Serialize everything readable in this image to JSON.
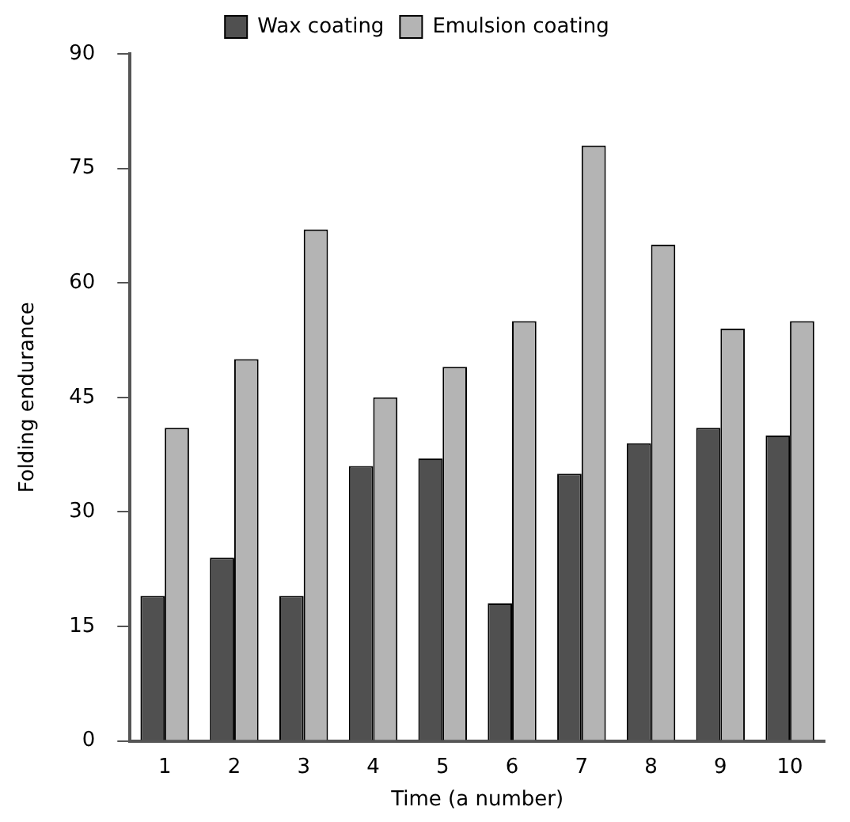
{
  "chart_data": {
    "type": "bar",
    "xlabel": "Time (a number)",
    "ylabel": "Folding endurance",
    "categories": [
      "1",
      "2",
      "3",
      "4",
      "5",
      "6",
      "7",
      "8",
      "9",
      "10"
    ],
    "series": [
      {
        "name": "Wax coating",
        "color": "#505050",
        "values": [
          19,
          24,
          19,
          36,
          37,
          18,
          35,
          39,
          41,
          40
        ]
      },
      {
        "name": "Emulsion coating",
        "color": "#b4b4b4",
        "values": [
          41,
          50,
          67,
          45,
          49,
          55,
          78,
          65,
          54,
          55
        ]
      }
    ],
    "ylim": [
      0,
      90
    ],
    "yticks": [
      0,
      15,
      30,
      45,
      60,
      75,
      90
    ],
    "grid": false,
    "legend": "top"
  }
}
